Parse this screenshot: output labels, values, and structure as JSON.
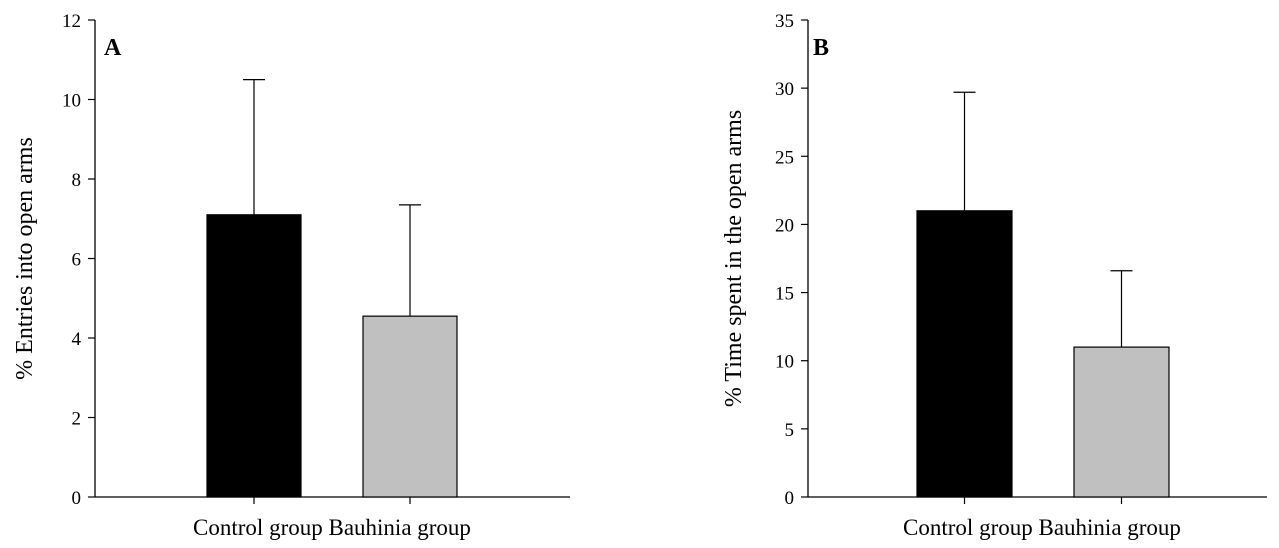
{
  "chart_data": [
    {
      "type": "bar",
      "panel_label": "A",
      "ylabel": "% Entries into open arms",
      "xlabel": "",
      "ylim": [
        0,
        12
      ],
      "yticks": [
        0,
        2,
        4,
        6,
        8,
        10,
        12
      ],
      "categories": [
        "Control group",
        "Bauhinia group"
      ],
      "category_caption": "Control group Bauhinia group",
      "values": [
        7.1,
        4.55
      ],
      "error_upper": [
        10.5,
        7.35
      ],
      "colors": [
        "#000000",
        "#c0c0c0"
      ],
      "grid": false
    },
    {
      "type": "bar",
      "panel_label": "B",
      "ylabel": "% Time spent in the open arms",
      "xlabel": "",
      "ylim": [
        0,
        35
      ],
      "yticks": [
        0,
        5,
        10,
        15,
        20,
        25,
        30,
        35
      ],
      "categories": [
        "Control group",
        "Bauhinia group"
      ],
      "category_caption": "Control group Bauhinia group",
      "values": [
        21.0,
        11.0
      ],
      "error_upper": [
        29.7,
        16.6
      ],
      "colors": [
        "#000000",
        "#c0c0c0"
      ],
      "grid": false
    }
  ]
}
